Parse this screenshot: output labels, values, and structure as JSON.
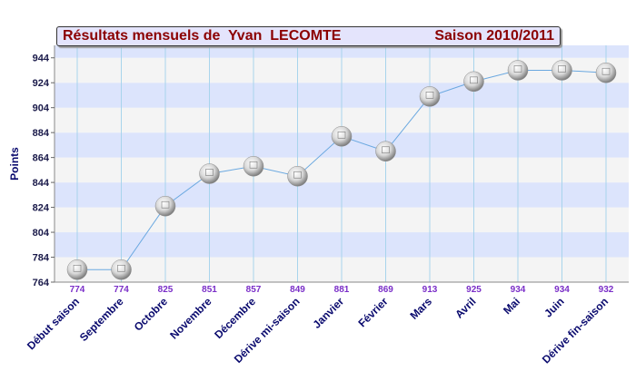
{
  "chart_data": {
    "type": "line",
    "title": "Résultats mensuels de  Yvan  LECOMTE",
    "subtitle": "Saison 2010/2011",
    "ylabel": "Points",
    "xlabel": "",
    "ylim": [
      764,
      954
    ],
    "yticks": [
      764,
      784,
      804,
      824,
      844,
      864,
      884,
      904,
      924,
      944
    ],
    "grid": true,
    "categories": [
      "Début saison",
      "Septembre",
      "Octobre",
      "Novembre",
      "Décembre",
      "Dérive mi-saison",
      "Janvier",
      "Février",
      "Mars",
      "Avril",
      "Mai",
      "Juin",
      "Dérive fin-saison"
    ],
    "series": [
      {
        "values": [
          774,
          774,
          825,
          851,
          857,
          849,
          881,
          869,
          913,
          925,
          934,
          934,
          932
        ]
      }
    ],
    "data_labels": [
      "774",
      "774",
      "825",
      "851",
      "857",
      "849",
      "881",
      "869",
      "913",
      "925",
      "934",
      "934",
      "932"
    ]
  },
  "colors": {
    "band_blue": "#dce4fc",
    "band_grey": "#f4f4f4",
    "line": "#6aa8e0",
    "data_label": "#7a2ec8",
    "category_label": "#0a0a6e",
    "title": "#8b0000"
  }
}
